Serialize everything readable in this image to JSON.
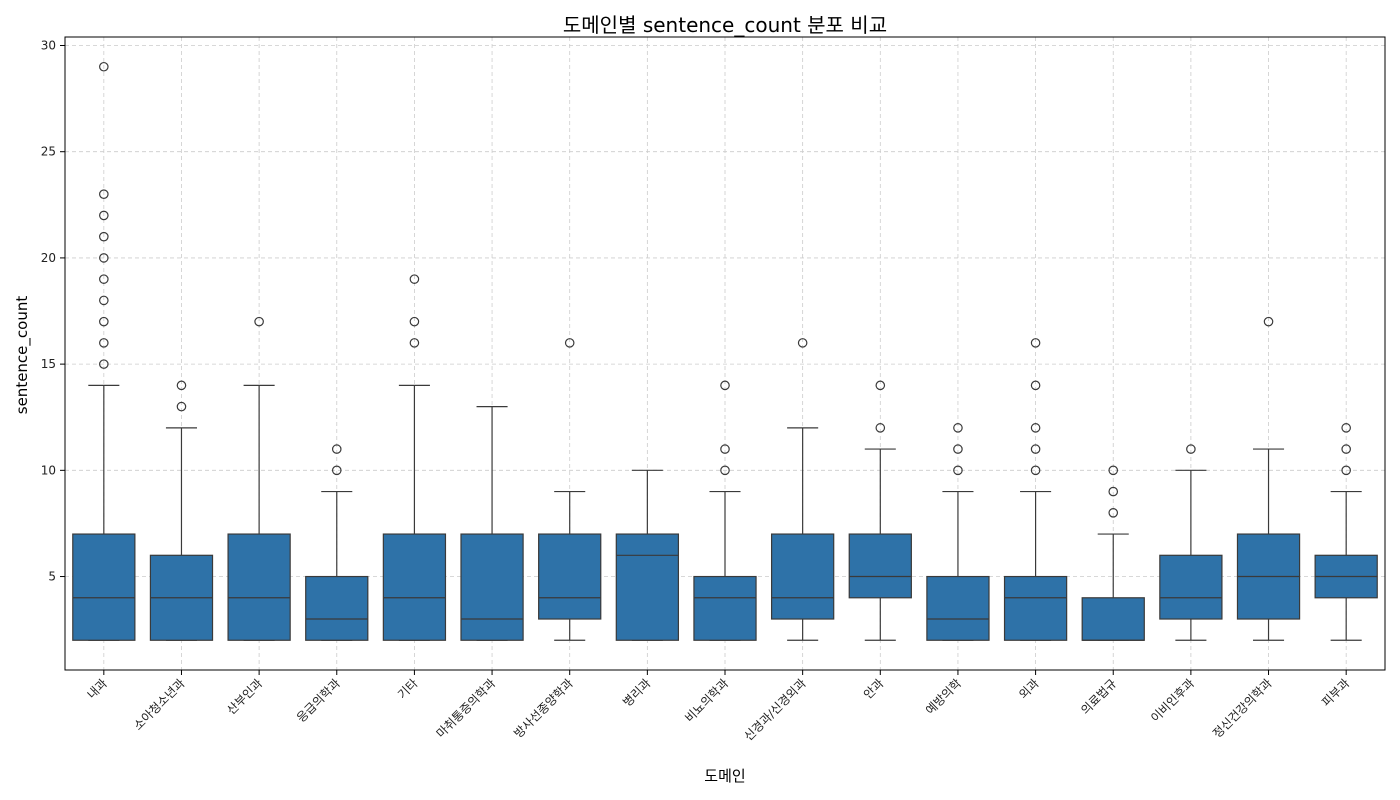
{
  "chart_data": {
    "type": "boxplot",
    "title": "도메인별 sentence_count 분포 비교",
    "xlabel": "도메인",
    "ylabel": "sentence_count",
    "ylim": [
      0.6,
      30.4
    ],
    "yticks": [
      5,
      10,
      15,
      20,
      25,
      30
    ],
    "grid": true,
    "series": [
      {
        "category": "내과",
        "whislo": 2,
        "q1": 2,
        "med": 4,
        "q3": 7,
        "whishi": 14,
        "fliers": [
          15,
          16,
          17,
          18,
          19,
          20,
          21,
          22,
          23,
          29
        ]
      },
      {
        "category": "소아청소년과",
        "whislo": 2,
        "q1": 2,
        "med": 4,
        "q3": 6,
        "whishi": 12,
        "fliers": [
          13,
          14
        ]
      },
      {
        "category": "산부인과",
        "whislo": 2,
        "q1": 2,
        "med": 4,
        "q3": 7,
        "whishi": 14,
        "fliers": [
          17
        ]
      },
      {
        "category": "응급의학과",
        "whislo": 2,
        "q1": 2,
        "med": 3,
        "q3": 5,
        "whishi": 9,
        "fliers": [
          10,
          11
        ]
      },
      {
        "category": "기타",
        "whislo": 2,
        "q1": 2,
        "med": 4,
        "q3": 7,
        "whishi": 14,
        "fliers": [
          16,
          17,
          19
        ]
      },
      {
        "category": "마취통증의학과",
        "whislo": 2,
        "q1": 2,
        "med": 3,
        "q3": 7,
        "whishi": 13,
        "fliers": []
      },
      {
        "category": "방사선종양학과",
        "whislo": 2,
        "q1": 3,
        "med": 4,
        "q3": 7,
        "whishi": 9,
        "fliers": [
          16
        ]
      },
      {
        "category": "병리과",
        "whislo": 2,
        "q1": 2,
        "med": 6,
        "q3": 7,
        "whishi": 10,
        "fliers": []
      },
      {
        "category": "비뇨의학과",
        "whislo": 2,
        "q1": 2,
        "med": 4,
        "q3": 5,
        "whishi": 9,
        "fliers": [
          10,
          11,
          14
        ]
      },
      {
        "category": "신경과/신경외과",
        "whislo": 2,
        "q1": 3,
        "med": 4,
        "q3": 7,
        "whishi": 12,
        "fliers": [
          16
        ]
      },
      {
        "category": "안과",
        "whislo": 2,
        "q1": 4,
        "med": 5,
        "q3": 7,
        "whishi": 11,
        "fliers": [
          12,
          14
        ]
      },
      {
        "category": "예방의학",
        "whislo": 2,
        "q1": 2,
        "med": 3,
        "q3": 5,
        "whishi": 9,
        "fliers": [
          10,
          11,
          12
        ]
      },
      {
        "category": "외과",
        "whislo": 2,
        "q1": 2,
        "med": 4,
        "q3": 5,
        "whishi": 9,
        "fliers": [
          10,
          11,
          12,
          14,
          16
        ]
      },
      {
        "category": "의료법규",
        "whislo": 2,
        "q1": 2,
        "med": 2,
        "q3": 4,
        "whishi": 7,
        "fliers": [
          8,
          9,
          10
        ]
      },
      {
        "category": "이비인후과",
        "whislo": 2,
        "q1": 3,
        "med": 4,
        "q3": 6,
        "whishi": 10,
        "fliers": [
          11
        ]
      },
      {
        "category": "정신건강의학과",
        "whislo": 2,
        "q1": 3,
        "med": 5,
        "q3": 7,
        "whishi": 11,
        "fliers": [
          17
        ]
      },
      {
        "category": "피부과",
        "whislo": 2,
        "q1": 4,
        "med": 5,
        "q3": 6,
        "whishi": 9,
        "fliers": [
          10,
          11,
          12
        ]
      }
    ],
    "colors": {
      "box": "#2e72a8",
      "line": "#3a3a3a",
      "grid": "#cccccc"
    }
  }
}
